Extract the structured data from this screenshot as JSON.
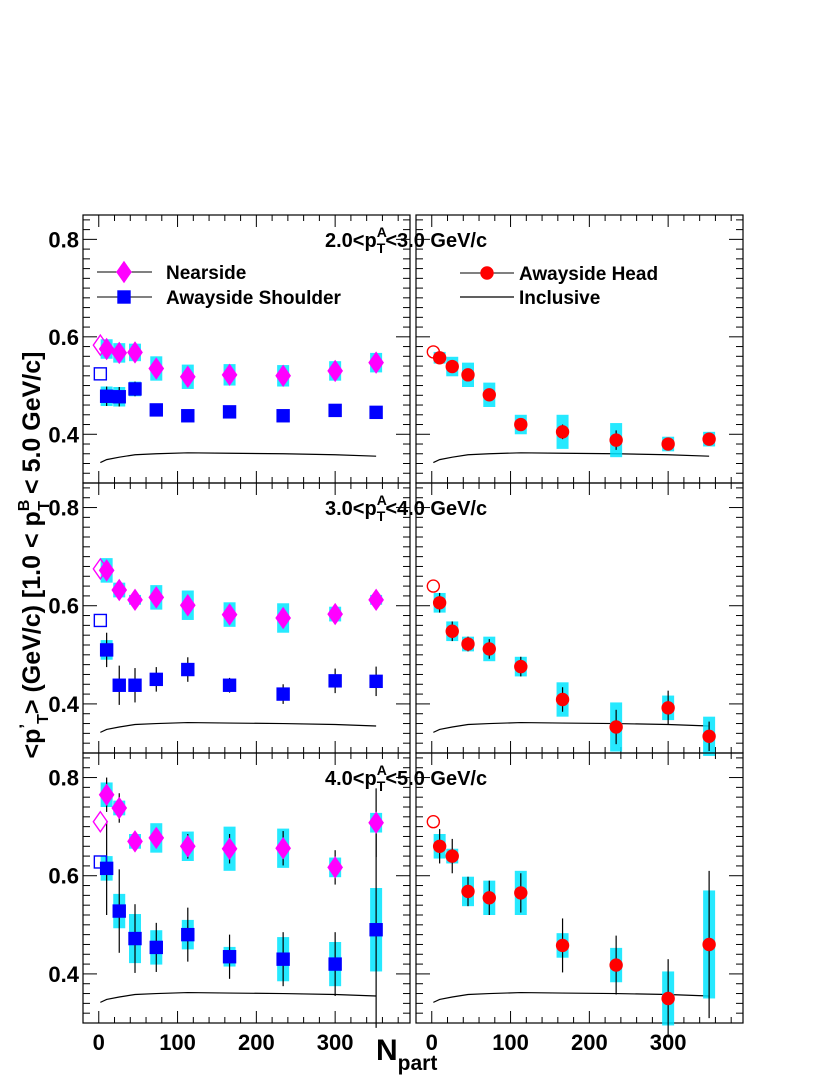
{
  "chart_data": {
    "type": "scatter",
    "title": "",
    "ylabel": "<p′_T> (GeV/c) [1.0 < p^B_T < 5.0 GeV/c]",
    "ylabel_parts": {
      "pre": "<p",
      "prime": "’",
      "sub": "T",
      "mid": "> (GeV/c) [1.0 < p",
      "sup": "B",
      "sub2": "T",
      "post": " < 5.0 GeV/c]"
    },
    "xlabel": "N_part",
    "xlabel_parts": {
      "main": "N",
      "sub": "part"
    },
    "xlim": [
      -20,
      395
    ],
    "xticks": [
      0,
      100,
      200,
      300
    ],
    "ylim": [
      0.3,
      0.85
    ],
    "yticks": [
      0.4,
      0.6,
      0.8
    ],
    "grid": false,
    "colors": {
      "nearside": "#ff00ff",
      "shoulder": "#0000ff",
      "head": "#ff0000",
      "syst_band": "#00e5ff",
      "inclusive": "#000000"
    },
    "legend": {
      "left": [
        {
          "name": "Nearside",
          "marker": "diamond"
        },
        {
          "name": "Awayside Shoulder",
          "marker": "square"
        }
      ],
      "right": [
        {
          "name": "Awayside Head",
          "marker": "circle"
        },
        {
          "name": "Inclusive",
          "marker": "line"
        }
      ]
    },
    "panels": [
      {
        "range_label": {
          "pre": "2.0<p",
          "sup": "A",
          "sub": "T",
          "post": "<3.0 GeV/c"
        },
        "nearside": {
          "x": [
            2,
            10,
            26,
            46,
            73,
            113,
            166,
            234,
            300,
            352
          ],
          "y": [
            0.583,
            0.575,
            0.567,
            0.568,
            0.535,
            0.518,
            0.522,
            0.52,
            0.53,
            0.547
          ],
          "err": [
            0,
            0.015,
            0.012,
            0.012,
            0.01,
            0.01,
            0.01,
            0.01,
            0.01,
            0.01
          ],
          "sys": [
            0,
            0.02,
            0.02,
            0.018,
            0.025,
            0.025,
            0.022,
            0.022,
            0.02,
            0.02
          ]
        },
        "shoulder": {
          "x": [
            2,
            10,
            26,
            46,
            73,
            113,
            166,
            234,
            300,
            352
          ],
          "y": [
            0.524,
            0.478,
            0.477,
            0.493,
            0.45,
            0.438,
            0.446,
            0.438,
            0.449,
            0.445
          ],
          "err": [
            0,
            0.02,
            0.02,
            0.015,
            0.008,
            0.008,
            0.008,
            0.008,
            0.008,
            0.008
          ],
          "sys": [
            0,
            0.02,
            0.02,
            0.015,
            0.01,
            0.01,
            0.01,
            0.012,
            0.01,
            0.01
          ]
        },
        "head": {
          "x": [
            2,
            10,
            26,
            46,
            73,
            113,
            166,
            234,
            300,
            352
          ],
          "y": [
            0.569,
            0.557,
            0.539,
            0.522,
            0.481,
            0.42,
            0.405,
            0.388,
            0.38,
            0.39
          ],
          "err": [
            0,
            0.012,
            0.012,
            0.012,
            0.012,
            0.012,
            0.015,
            0.02,
            0.012,
            0.012
          ],
          "sys": [
            0,
            0.012,
            0.02,
            0.025,
            0.025,
            0.02,
            0.035,
            0.035,
            0.015,
            0.015
          ]
        }
      },
      {
        "range_label": {
          "pre": "3.0<p",
          "sup": "A",
          "sub": "T",
          "post": "<4.0 GeV/c"
        },
        "nearside": {
          "x": [
            2,
            10,
            26,
            46,
            73,
            113,
            166,
            234,
            300,
            352
          ],
          "y": [
            0.675,
            0.672,
            0.632,
            0.612,
            0.617,
            0.601,
            0.582,
            0.575,
            0.583,
            0.612
          ],
          "err": [
            0,
            0.015,
            0.012,
            0.012,
            0.012,
            0.012,
            0.015,
            0.015,
            0.012,
            0.012
          ],
          "sys": [
            0,
            0.025,
            0.015,
            0.01,
            0.025,
            0.03,
            0.025,
            0.03,
            0.015,
            0.01
          ]
        },
        "shoulder": {
          "x": [
            2,
            10,
            26,
            46,
            73,
            113,
            166,
            234,
            300,
            352
          ],
          "y": [
            0.57,
            0.51,
            0.438,
            0.438,
            0.45,
            0.47,
            0.438,
            0.42,
            0.447,
            0.446
          ],
          "err": [
            0,
            0.035,
            0.04,
            0.035,
            0.025,
            0.025,
            0.015,
            0.02,
            0.025,
            0.03
          ],
          "sys": [
            0,
            0.02,
            0.01,
            0.01,
            0.01,
            0.01,
            0.01,
            0.01,
            0.01,
            0.01
          ]
        },
        "head": {
          "x": [
            2,
            10,
            26,
            46,
            73,
            113,
            166,
            234,
            300,
            352
          ],
          "y": [
            0.64,
            0.606,
            0.548,
            0.522,
            0.512,
            0.476,
            0.409,
            0.353,
            0.392,
            0.334
          ],
          "err": [
            0,
            0.02,
            0.02,
            0.015,
            0.02,
            0.02,
            0.025,
            0.035,
            0.035,
            0.03
          ],
          "sys": [
            0,
            0.02,
            0.02,
            0.015,
            0.025,
            0.02,
            0.035,
            0.05,
            0.025,
            0.04
          ]
        }
      },
      {
        "range_label": {
          "pre": "4.0<p",
          "sup": "A",
          "sub": "T",
          "post": "<5.0 GeV/c"
        },
        "nearside": {
          "x": [
            2,
            10,
            26,
            46,
            73,
            113,
            166,
            234,
            300,
            352
          ],
          "y": [
            0.71,
            0.765,
            0.738,
            0.67,
            0.677,
            0.66,
            0.655,
            0.656,
            0.617,
            0.708
          ],
          "err": [
            0,
            0.035,
            0.03,
            0.02,
            0.02,
            0.025,
            0.03,
            0.035,
            0.035,
            0.07
          ],
          "sys": [
            0,
            0.025,
            0.015,
            0.015,
            0.03,
            0.03,
            0.045,
            0.04,
            0.02,
            0.02
          ]
        },
        "shoulder": {
          "x": [
            2,
            10,
            26,
            46,
            73,
            113,
            166,
            234,
            300,
            352
          ],
          "y": [
            0.628,
            0.615,
            0.528,
            0.472,
            0.454,
            0.48,
            0.435,
            0.43,
            0.42,
            0.49
          ],
          "err": [
            0,
            0.095,
            0.085,
            0.07,
            0.05,
            0.055,
            0.045,
            0.055,
            0.065,
            0.2
          ],
          "sys": [
            0,
            0.025,
            0.035,
            0.05,
            0.035,
            0.03,
            0.02,
            0.045,
            0.045,
            0.085
          ]
        },
        "head": {
          "x": [
            2,
            10,
            26,
            46,
            73,
            113,
            166,
            234,
            300,
            352
          ],
          "y": [
            0.71,
            0.66,
            0.64,
            0.568,
            0.555,
            0.565,
            0.458,
            0.418,
            0.35,
            0.46
          ],
          "err": [
            0,
            0.035,
            0.035,
            0.03,
            0.035,
            0.04,
            0.055,
            0.06,
            0.08,
            0.15
          ],
          "sys": [
            0,
            0.025,
            0.015,
            0.03,
            0.035,
            0.045,
            0.025,
            0.035,
            0.055,
            0.11
          ]
        }
      }
    ],
    "inclusive": {
      "x": [
        2,
        10,
        26,
        46,
        73,
        113,
        166,
        234,
        300,
        352
      ],
      "y": [
        0.342,
        0.348,
        0.353,
        0.358,
        0.36,
        0.362,
        0.361,
        0.36,
        0.358,
        0.355
      ]
    }
  }
}
